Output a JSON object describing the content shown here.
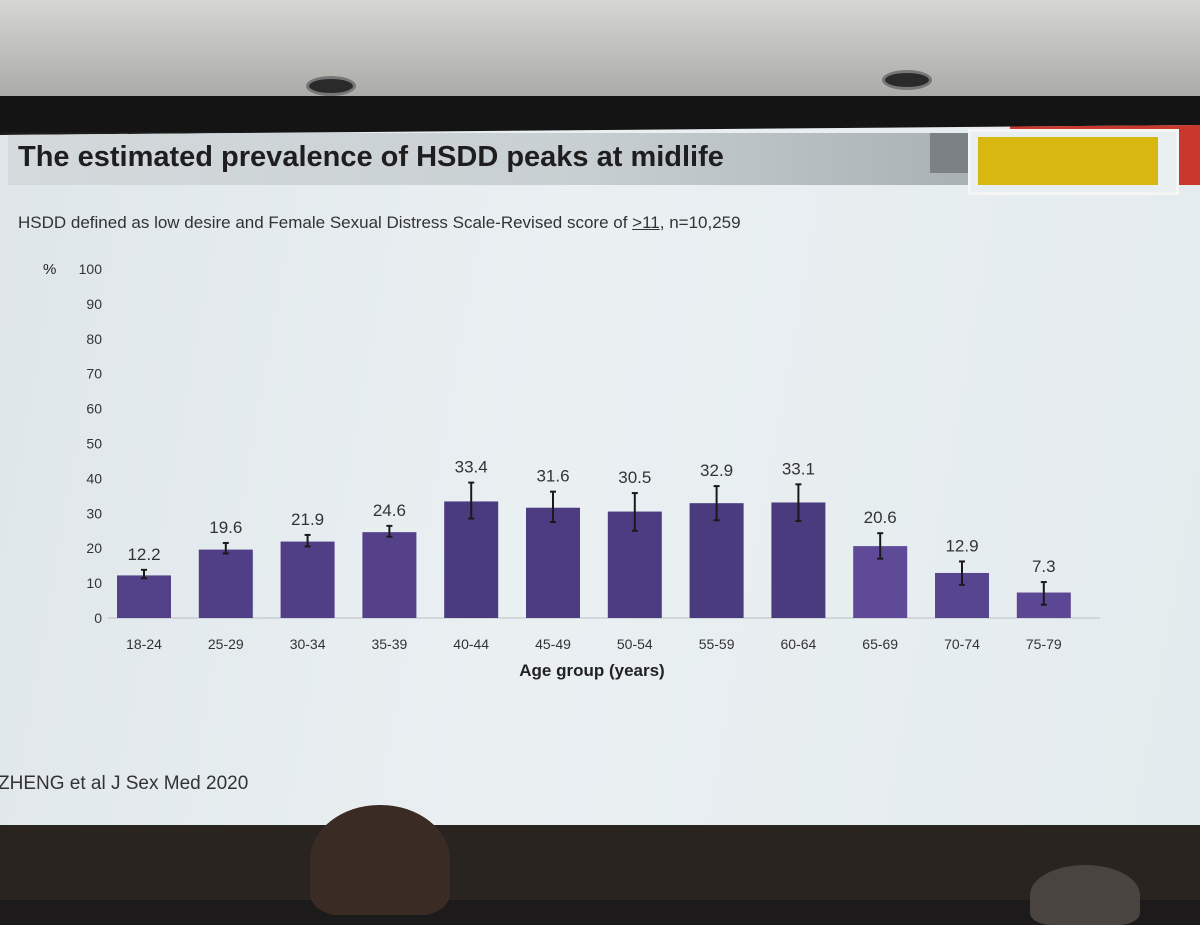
{
  "slide": {
    "title": "The estimated prevalence of HSDD peaks at midlife",
    "subtitle_pre": "HSDD defined as low desire and Female Sexual Distress Scale-Revised score of ",
    "subtitle_ge": ">11",
    "subtitle_post": ", n=10,259",
    "source": "ZHENG et al J Sex Med 2020"
  },
  "colors": {
    "bar_light": "#6a52a6",
    "bar_dark": "#4a3a7e",
    "accent_red": "#c9382c",
    "accent_yellow": "#d8b810"
  },
  "chart_data": {
    "type": "bar",
    "title": "",
    "ylabel": "%",
    "xlabel": "Age group (years)",
    "ylim": [
      0,
      100
    ],
    "yticks": [
      0,
      10,
      20,
      30,
      40,
      50,
      60,
      70,
      80,
      90,
      100
    ],
    "grid": false,
    "categories": [
      "18-24",
      "25-29",
      "30-34",
      "35-39",
      "40-44",
      "45-49",
      "50-54",
      "55-59",
      "60-64",
      "65-69",
      "70-74",
      "75-79"
    ],
    "values": [
      12.2,
      19.6,
      21.9,
      24.6,
      33.4,
      31.6,
      30.5,
      32.9,
      33.1,
      20.6,
      12.9,
      7.3
    ],
    "value_labels": [
      "12.2",
      "19.6",
      "21.9",
      "24.6",
      "33.4",
      "31.6",
      "30.5",
      "32.9",
      "33.1",
      "20.6",
      "12.9",
      "7.3"
    ],
    "error_low": [
      11.4,
      18.5,
      20.5,
      23.3,
      28.5,
      27.5,
      25.0,
      28.0,
      27.8,
      17.0,
      9.5,
      3.8
    ],
    "error_high": [
      13.8,
      21.5,
      23.8,
      26.4,
      38.8,
      36.2,
      35.8,
      37.8,
      38.3,
      24.3,
      16.2,
      10.3
    ]
  }
}
